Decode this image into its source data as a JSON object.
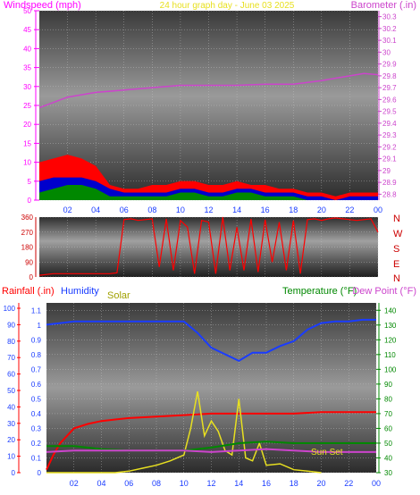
{
  "header": {
    "left_label": "Windspeed (mph)",
    "center_label": "24 hour graph day - June 03 2025",
    "right_label": "Barometer (.in)"
  },
  "direction_labels": [
    "N",
    "W",
    "S",
    "E",
    "N"
  ],
  "bottom_header": {
    "rainfall_label": "Rainfall (.in)",
    "humidity_label": "Humidity",
    "solar_label": "Solar",
    "temperature_label": "Temperature (°F)",
    "dewpoint_label": "Dew Point (°F)"
  },
  "annotation": {
    "sunset": "Sun Set"
  },
  "colors": {
    "wind_max": "#ff0000",
    "wind_avg": "#0000cc",
    "wind_min": "#008800",
    "barometer": "#cc44cc",
    "direction": "#ff0000",
    "humidity": "#1a3cff",
    "solar": "#e8e020",
    "rainfall": "#ff0000",
    "temperature": "#008800",
    "dewpoint": "#cc44cc"
  },
  "chart_data": [
    {
      "type": "area",
      "title": "24 hour graph day - June 03 2025",
      "x_ticks": [
        "02",
        "04",
        "06",
        "08",
        "10",
        "12",
        "14",
        "16",
        "18",
        "20",
        "22",
        "00"
      ],
      "y_left": {
        "label": "Windspeed (mph)",
        "ticks": [
          0,
          5,
          10,
          15,
          20,
          25,
          30,
          35,
          40,
          45,
          50
        ],
        "ylim": [
          0,
          50
        ]
      },
      "y_right": {
        "label": "Barometer (.in)",
        "ticks": [
          "28.8",
          "28.9",
          "29",
          "29.1",
          "29.2",
          "29.3",
          "29.4",
          "29.5",
          "29.6",
          "29.7",
          "29.8",
          "29.9",
          "30",
          "30.1",
          "30.2",
          "30.3"
        ],
        "ylim": [
          28.75,
          30.35
        ]
      },
      "series": [
        {
          "name": "Windspeed max",
          "x": [
            0,
            1,
            2,
            3,
            4,
            5,
            6,
            7,
            8,
            9,
            10,
            11,
            12,
            13,
            14,
            15,
            16,
            17,
            18,
            19,
            20,
            21,
            22,
            23,
            24
          ],
          "values": [
            10,
            11,
            12,
            11,
            9,
            4,
            3,
            3,
            4,
            4,
            5,
            5,
            4,
            4,
            5,
            4,
            4,
            3,
            3,
            2,
            2,
            1,
            2,
            2,
            2
          ]
        },
        {
          "name": "Windspeed avg",
          "x": [
            0,
            1,
            2,
            3,
            4,
            5,
            6,
            7,
            8,
            9,
            10,
            11,
            12,
            13,
            14,
            15,
            16,
            17,
            18,
            19,
            20,
            21,
            22,
            23,
            24
          ],
          "values": [
            5,
            6,
            6,
            6,
            5,
            3,
            2,
            2,
            2,
            2,
            3,
            3,
            2,
            2,
            3,
            3,
            2,
            2,
            2,
            1,
            1,
            0,
            1,
            1,
            1
          ]
        },
        {
          "name": "Windspeed min",
          "x": [
            0,
            1,
            2,
            3,
            4,
            5,
            6,
            7,
            8,
            9,
            10,
            11,
            12,
            13,
            14,
            15,
            16,
            17,
            18,
            19,
            20,
            21,
            22,
            23,
            24
          ],
          "values": [
            2,
            3,
            4,
            4,
            3,
            1,
            1,
            1,
            1,
            1,
            2,
            2,
            1,
            1,
            2,
            2,
            1,
            1,
            1,
            0,
            0,
            0,
            0,
            0,
            0
          ]
        },
        {
          "name": "Barometer",
          "axis": "right",
          "x": [
            0,
            2,
            4,
            6,
            8,
            10,
            12,
            14,
            16,
            18,
            20,
            21,
            22,
            23,
            24
          ],
          "values": [
            29.53,
            29.62,
            29.66,
            29.68,
            29.7,
            29.72,
            29.72,
            29.72,
            29.73,
            29.73,
            29.76,
            29.78,
            29.8,
            29.82,
            29.81
          ]
        }
      ]
    },
    {
      "type": "line",
      "x_ticks": [],
      "y_left": {
        "ticks": [
          0,
          90,
          180,
          270,
          360
        ],
        "ylim": [
          0,
          360
        ]
      },
      "series": [
        {
          "name": "Wind direction",
          "x": [
            0,
            0.5,
            1,
            1.5,
            2,
            2.5,
            3,
            3.5,
            4,
            4.5,
            5,
            5.5,
            6,
            6.5,
            7,
            7.5,
            8,
            8.5,
            9,
            9.5,
            10,
            10.5,
            11,
            11.5,
            12,
            12.5,
            13,
            13.5,
            14,
            14.5,
            15,
            15.5,
            16,
            16.5,
            17,
            17.5,
            18,
            18.5,
            19,
            19.5,
            20,
            20.5,
            21,
            21.5,
            22,
            22.5,
            23,
            23.5,
            24
          ],
          "values": [
            10,
            15,
            20,
            20,
            20,
            20,
            20,
            20,
            20,
            20,
            20,
            25,
            345,
            350,
            340,
            345,
            350,
            60,
            350,
            40,
            340,
            300,
            20,
            340,
            330,
            20,
            360,
            40,
            300,
            40,
            350,
            30,
            345,
            90,
            330,
            40,
            340,
            20,
            345,
            350,
            340,
            350,
            355,
            350,
            345,
            340,
            345,
            350,
            270
          ]
        }
      ]
    },
    {
      "type": "line",
      "x_ticks": [
        "02",
        "04",
        "06",
        "08",
        "10",
        "12",
        "14",
        "16",
        "18",
        "20",
        "22",
        "00"
      ],
      "y_left_outer": {
        "label": "Rainfall (.in)",
        "ticks": [
          "0",
          "0.1",
          "0.2",
          "0.3",
          "0.4",
          "0.5",
          "0.6",
          "0.7",
          "0.8",
          "0.9",
          "1",
          "1.1"
        ],
        "ylim": [
          0,
          1.15
        ]
      },
      "y_left_inner": {
        "label": "Humidity",
        "ticks": [
          0,
          10,
          20,
          30,
          40,
          50,
          60,
          70,
          80,
          90,
          100
        ],
        "ylim": [
          0,
          100
        ]
      },
      "y_right": {
        "label": "Temperature (°F)",
        "ticks": [
          30,
          40,
          50,
          60,
          70,
          80,
          90,
          100,
          110,
          120,
          130,
          140
        ],
        "ylim": [
          30,
          145
        ]
      },
      "series": [
        {
          "name": "Humidity",
          "axis": "inner",
          "x": [
            0,
            1,
            2,
            4,
            6,
            8,
            10,
            11,
            12,
            13,
            14,
            15,
            16,
            17,
            18,
            19,
            20,
            21,
            22,
            23,
            24
          ],
          "values": [
            90,
            91,
            92,
            92,
            92,
            92,
            92,
            85,
            76,
            72,
            68,
            73,
            73,
            77,
            80,
            87,
            91,
            92,
            92,
            93,
            93
          ]
        },
        {
          "name": "Rainfall",
          "axis": "outer",
          "x": [
            0,
            0.5,
            1,
            2,
            3,
            4,
            5,
            6,
            8,
            10,
            12,
            14,
            16,
            18,
            20,
            22,
            24
          ],
          "values": [
            0.02,
            0.12,
            0.2,
            0.3,
            0.33,
            0.35,
            0.36,
            0.37,
            0.38,
            0.39,
            0.4,
            0.4,
            0.4,
            0.4,
            0.41,
            0.41,
            0.41
          ]
        },
        {
          "name": "Solar",
          "axis": "outer",
          "x": [
            0,
            5,
            6,
            7,
            8,
            9,
            10,
            10.5,
            11,
            11.5,
            12,
            12.5,
            13,
            13.5,
            14,
            14.5,
            15,
            15.5,
            16,
            17,
            18,
            19,
            20
          ],
          "values": [
            0,
            0,
            0.01,
            0.03,
            0.05,
            0.08,
            0.12,
            0.3,
            0.55,
            0.25,
            0.35,
            0.28,
            0.15,
            0.12,
            0.5,
            0.1,
            0.08,
            0.2,
            0.05,
            0.06,
            0.02,
            0.01,
            0
          ]
        },
        {
          "name": "Temperature",
          "axis": "right",
          "x": [
            0,
            2,
            4,
            6,
            8,
            10,
            12,
            14,
            16,
            18,
            20,
            22,
            24
          ],
          "values": [
            48,
            48,
            46,
            45,
            45,
            45,
            47,
            50,
            51,
            50,
            50,
            50,
            50
          ]
        },
        {
          "name": "Dew Point",
          "axis": "right",
          "x": [
            0,
            2,
            4,
            6,
            8,
            10,
            12,
            14,
            16,
            18,
            20,
            22,
            24
          ],
          "values": [
            44,
            45,
            45,
            45,
            45,
            45,
            44,
            45,
            46,
            45,
            44,
            44,
            44
          ]
        }
      ]
    }
  ]
}
